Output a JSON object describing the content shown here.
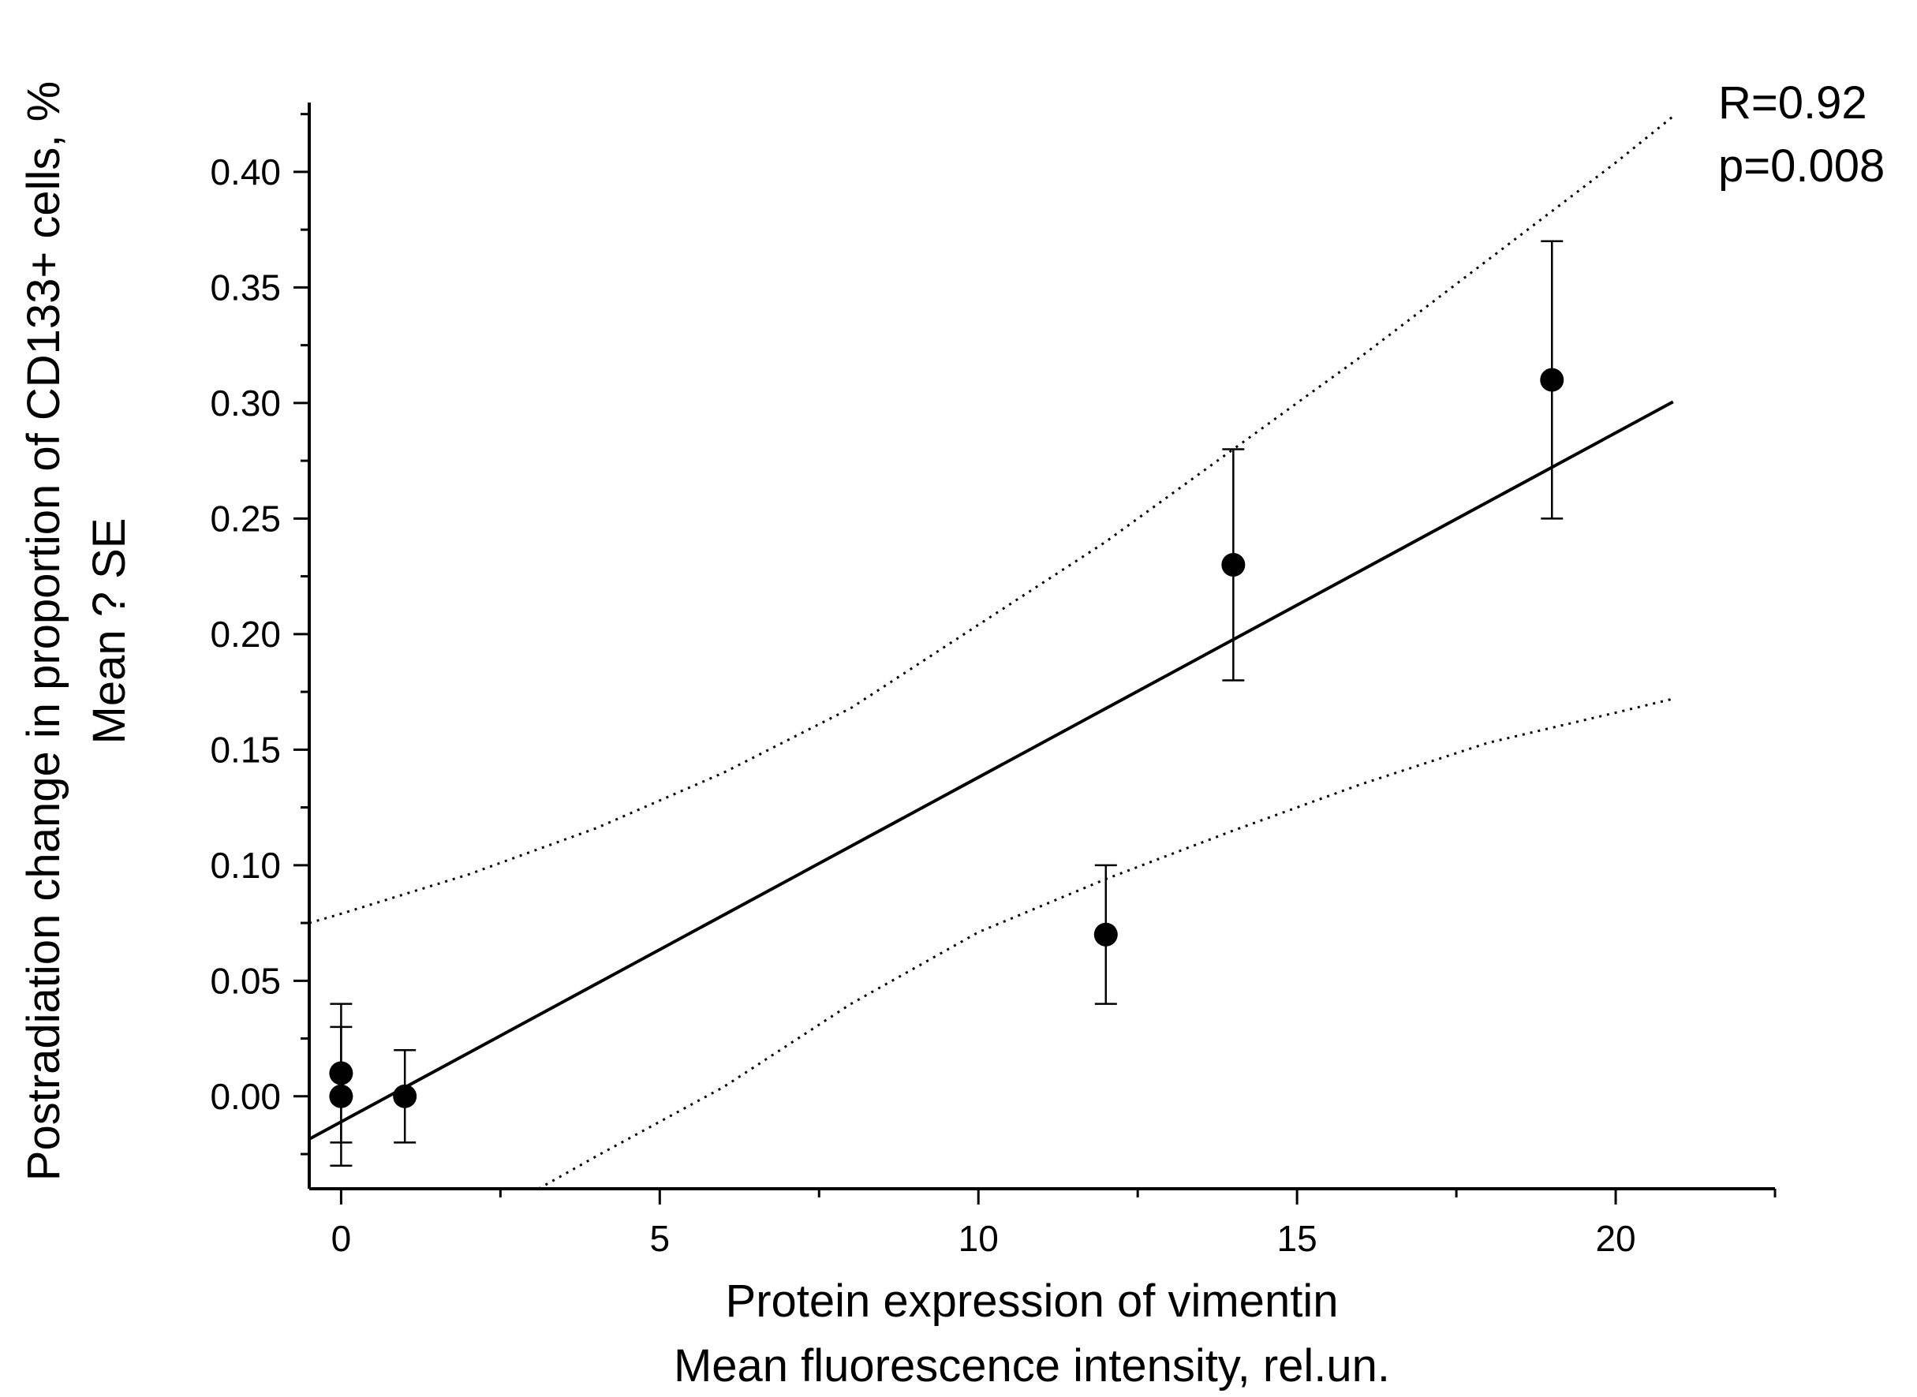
{
  "chart_data": {
    "type": "scatter",
    "title": "",
    "xlabel_lines": [
      "Protein expression of vimentin",
      "Mean fluorescence intensity, rel.un."
    ],
    "ylabel_lines": [
      "Postradiation change in proportion of CD133+ cells, %",
      "Mean ? SE"
    ],
    "xlim": [
      -0.5,
      22.5
    ],
    "ylim": [
      -0.04,
      0.43
    ],
    "x_ticks": [
      0,
      5,
      10,
      15,
      20
    ],
    "x_tick_labels": [
      "0",
      "5",
      "10",
      "15",
      "20"
    ],
    "x_minor_ticks": [
      2.5,
      7.5,
      12.5,
      17.5,
      22.5
    ],
    "y_ticks": [
      0.0,
      0.05,
      0.1,
      0.15,
      0.2,
      0.25,
      0.3,
      0.35,
      0.4
    ],
    "y_tick_labels": [
      "0.00",
      "0.05",
      "0.10",
      "0.15",
      "0.20",
      "0.25",
      "0.30",
      "0.35",
      "0.40"
    ],
    "y_minor_ticks": [
      -0.025,
      0.025,
      0.075,
      0.125,
      0.175,
      0.225,
      0.275,
      0.325,
      0.375,
      0.425
    ],
    "points": [
      {
        "x": 0,
        "y": 0.01,
        "err_low": -0.02,
        "err_high": 0.04
      },
      {
        "x": 0,
        "y": 0.0,
        "err_low": -0.03,
        "err_high": 0.03
      },
      {
        "x": 1,
        "y": 0.0,
        "err_low": -0.02,
        "err_high": 0.02
      },
      {
        "x": 12,
        "y": 0.07,
        "err_low": 0.04,
        "err_high": 0.1
      },
      {
        "x": 14,
        "y": 0.23,
        "err_low": 0.18,
        "err_high": 0.28
      },
      {
        "x": 19,
        "y": 0.31,
        "err_low": 0.25,
        "err_high": 0.37
      }
    ],
    "fit_line": {
      "x": [
        -0.5,
        20.9
      ],
      "y": [
        -0.0185,
        0.3005
      ]
    },
    "ci_upper": {
      "x": [
        -0.5,
        0,
        2,
        4,
        6,
        8,
        10,
        12,
        14,
        16,
        18,
        20,
        20.9
      ],
      "y": [
        0.075,
        0.079,
        0.096,
        0.116,
        0.14,
        0.168,
        0.204,
        0.24,
        0.28,
        0.32,
        0.362,
        0.404,
        0.424
      ]
    },
    "ci_lower": {
      "x": [
        3.1,
        4,
        6,
        8,
        10,
        12,
        14,
        16,
        18,
        20,
        20.9
      ],
      "y": [
        -0.04,
        -0.026,
        0.004,
        0.04,
        0.071,
        0.094,
        0.115,
        0.135,
        0.153,
        0.166,
        0.172
      ]
    },
    "annotations": [
      "R=0.92",
      "p=0.008"
    ],
    "legend": ""
  }
}
